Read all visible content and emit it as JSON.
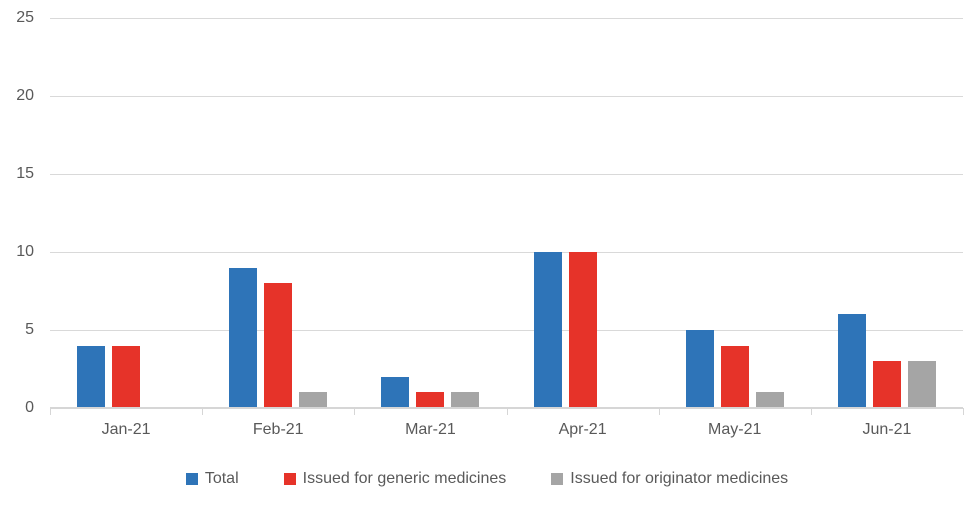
{
  "chart_data": {
    "type": "bar",
    "title": "",
    "xlabel": "",
    "ylabel": "",
    "categories": [
      "Jan-21",
      "Feb-21",
      "Mar-21",
      "Apr-21",
      "May-21",
      "Jun-21"
    ],
    "series": [
      {
        "name": "Total",
        "color": "#2E74B8",
        "values": [
          4,
          9,
          2,
          10,
          5,
          6
        ]
      },
      {
        "name": "Issued for generic medicines",
        "color": "#E63329",
        "values": [
          4,
          8,
          1,
          10,
          4,
          3
        ]
      },
      {
        "name": "Issued for originator medicines",
        "color": "#A5A5A5",
        "values": [
          0,
          1,
          1,
          0,
          1,
          3
        ]
      }
    ],
    "ylim": [
      0,
      25
    ],
    "yticks": [
      0,
      5,
      10,
      15,
      20,
      25
    ],
    "y_tick_labels": [
      "0",
      "5",
      "10",
      "15",
      "20",
      "25"
    ],
    "grid": true,
    "gridline_color": "#D9D9D9",
    "axis_line_color": "#D6D6D6",
    "text_color": "#595959",
    "legend_position": "bottom"
  }
}
